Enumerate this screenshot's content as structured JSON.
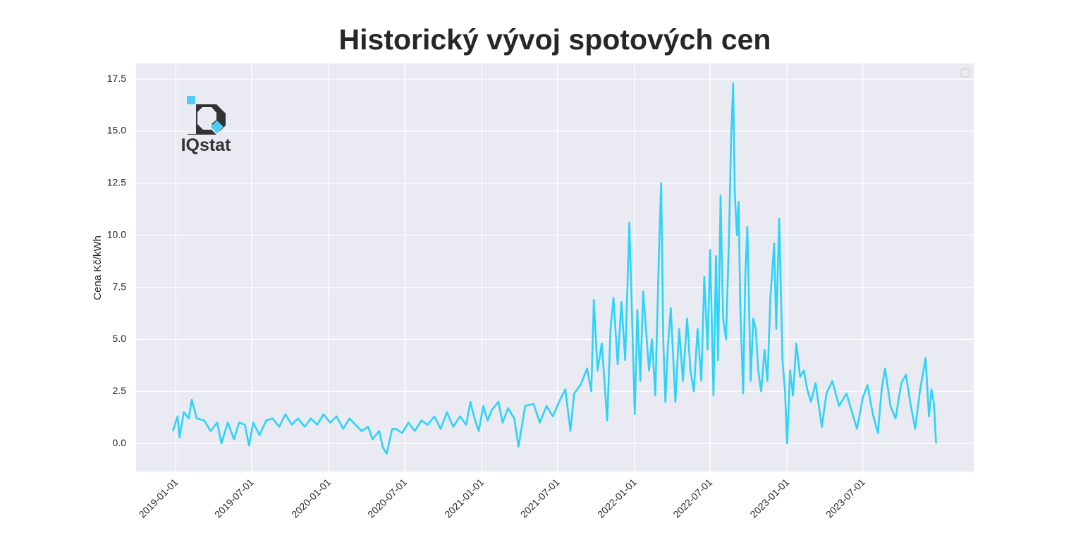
{
  "chart_data": {
    "type": "line",
    "title": "Historický vývoj spotových cen",
    "ylabel": "Cena Kč/kWh",
    "logo_text": "IQstat",
    "grid": true,
    "xlim": [
      "2018-09-28",
      "2024-03-22"
    ],
    "xticks": [
      "2019-01-01",
      "2019-07-01",
      "2020-01-01",
      "2020-07-01",
      "2021-01-01",
      "2021-07-01",
      "2022-01-01",
      "2022-07-01",
      "2023-01-01",
      "2023-07-01"
    ],
    "ylim": [
      -1.35,
      18.25
    ],
    "yticks": [
      {
        "value": 0,
        "label": "0.0"
      },
      2.5,
      {
        "value": 5,
        "label": "5.0"
      },
      7.5,
      {
        "value": 10,
        "label": "10.0"
      },
      12.5,
      {
        "value": 15,
        "label": "15.0"
      },
      17.5
    ],
    "x": [
      "2018-12-25",
      "2019-01-05",
      "2019-01-10",
      "2019-01-20",
      "2019-02-01",
      "2019-02-08",
      "2019-02-20",
      "2019-03-10",
      "2019-03-25",
      "2019-04-10",
      "2019-04-20",
      "2019-05-05",
      "2019-05-20",
      "2019-06-01",
      "2019-06-15",
      "2019-06-25",
      "2019-07-05",
      "2019-07-20",
      "2019-08-05",
      "2019-08-20",
      "2019-09-05",
      "2019-09-20",
      "2019-10-05",
      "2019-10-20",
      "2019-11-05",
      "2019-11-20",
      "2019-12-05",
      "2019-12-20",
      "2020-01-05",
      "2020-01-20",
      "2020-02-05",
      "2020-02-20",
      "2020-03-05",
      "2020-03-20",
      "2020-04-05",
      "2020-04-15",
      "2020-05-01",
      "2020-05-10",
      "2020-05-19",
      "2020-06-01",
      "2020-06-10",
      "2020-06-25",
      "2020-07-10",
      "2020-07-25",
      "2020-08-10",
      "2020-08-25",
      "2020-09-10",
      "2020-09-25",
      "2020-10-10",
      "2020-10-25",
      "2020-11-10",
      "2020-11-25",
      "2020-12-05",
      "2020-12-15",
      "2020-12-25",
      "2021-01-05",
      "2021-01-15",
      "2021-01-25",
      "2021-02-10",
      "2021-02-20",
      "2021-03-05",
      "2021-03-20",
      "2021-03-30",
      "2021-04-15",
      "2021-05-05",
      "2021-05-20",
      "2021-06-05",
      "2021-06-20",
      "2021-07-05",
      "2021-07-20",
      "2021-08-01",
      "2021-08-10",
      "2021-08-25",
      "2021-09-10",
      "2021-09-20",
      "2021-09-26",
      "2021-10-05",
      "2021-10-15",
      "2021-10-28",
      "2021-11-05",
      "2021-11-12",
      "2021-11-22",
      "2021-12-01",
      "2021-12-10",
      "2021-12-20",
      "2022-01-02",
      "2022-01-08",
      "2022-01-15",
      "2022-01-22",
      "2022-02-05",
      "2022-02-12",
      "2022-02-20",
      "2022-03-01",
      "2022-03-06",
      "2022-03-11",
      "2022-03-16",
      "2022-03-22",
      "2022-03-29",
      "2022-04-09",
      "2022-04-18",
      "2022-04-27",
      "2022-05-07",
      "2022-05-15",
      "2022-05-23",
      "2022-06-01",
      "2022-06-10",
      "2022-06-17",
      "2022-06-25",
      "2022-07-01",
      "2022-07-09",
      "2022-07-15",
      "2022-07-20",
      "2022-07-26",
      "2022-08-01",
      "2022-08-08",
      "2022-08-15",
      "2022-08-20",
      "2022-08-25",
      "2022-08-29",
      "2022-09-03",
      "2022-09-07",
      "2022-09-11",
      "2022-09-18",
      "2022-09-23",
      "2022-09-28",
      "2022-10-06",
      "2022-10-12",
      "2022-10-18",
      "2022-10-24",
      "2022-10-31",
      "2022-11-08",
      "2022-11-15",
      "2022-11-22",
      "2022-12-01",
      "2022-12-06",
      "2022-12-13",
      "2022-12-21",
      "2022-12-27",
      "2023-01-01",
      "2023-01-08",
      "2023-01-15",
      "2023-01-23",
      "2023-02-01",
      "2023-02-10",
      "2023-02-18",
      "2023-02-27",
      "2023-03-10",
      "2023-03-25",
      "2023-04-05",
      "2023-04-19",
      "2023-05-05",
      "2023-05-23",
      "2023-06-05",
      "2023-06-17",
      "2023-07-01",
      "2023-07-12",
      "2023-07-25",
      "2023-08-06",
      "2023-08-15",
      "2023-08-23",
      "2023-09-05",
      "2023-09-17",
      "2023-10-01",
      "2023-10-12",
      "2023-10-22",
      "2023-11-03",
      "2023-11-15",
      "2023-11-28",
      "2023-12-06",
      "2023-12-12",
      "2023-12-18",
      "2023-12-23"
    ],
    "series": [
      {
        "color": "#2dd3f9",
        "values": [
          0.6,
          1.3,
          0.3,
          1.5,
          1.2,
          2.1,
          1.2,
          1.1,
          0.6,
          1.0,
          0.0,
          1.0,
          0.2,
          1.0,
          0.9,
          -0.1,
          1.0,
          0.4,
          1.1,
          1.2,
          0.8,
          1.4,
          0.9,
          1.2,
          0.8,
          1.2,
          0.9,
          1.4,
          1.0,
          1.3,
          0.7,
          1.2,
          0.9,
          0.6,
          0.8,
          0.2,
          0.6,
          -0.2,
          -0.5,
          0.7,
          0.7,
          0.5,
          1.0,
          0.6,
          1.1,
          0.9,
          1.3,
          0.7,
          1.5,
          0.8,
          1.3,
          0.9,
          2.0,
          1.2,
          0.6,
          1.8,
          1.1,
          1.6,
          2.0,
          1.0,
          1.7,
          1.2,
          -0.15,
          1.8,
          1.9,
          1.0,
          1.8,
          1.3,
          2.0,
          2.6,
          0.6,
          2.4,
          2.8,
          3.6,
          2.5,
          6.9,
          3.5,
          4.8,
          1.1,
          5.5,
          7.0,
          3.8,
          6.8,
          4.0,
          10.6,
          1.4,
          6.4,
          3.0,
          7.3,
          3.5,
          5.0,
          2.3,
          9.4,
          12.5,
          5.0,
          2.0,
          4.6,
          6.5,
          2.0,
          5.5,
          3.0,
          6.0,
          3.5,
          2.5,
          5.5,
          3.0,
          8.0,
          4.5,
          9.3,
          2.3,
          9.0,
          4.0,
          11.9,
          6.0,
          5.0,
          9.8,
          14.5,
          17.3,
          12.0,
          10.0,
          11.6,
          6.6,
          2.4,
          8.0,
          10.4,
          3.0,
          6.0,
          5.5,
          3.5,
          2.5,
          4.5,
          3.0,
          7.0,
          9.6,
          5.5,
          10.8,
          4.0,
          2.5,
          0.0,
          3.5,
          2.3,
          4.8,
          3.2,
          3.5,
          2.6,
          2.0,
          2.9,
          0.8,
          2.4,
          3.0,
          1.8,
          2.4,
          1.5,
          0.7,
          2.2,
          2.8,
          1.4,
          0.5,
          2.6,
          3.6,
          1.8,
          1.2,
          2.9,
          3.3,
          2.0,
          0.7,
          2.6,
          4.1,
          1.3,
          2.6,
          1.9,
          0.0
        ]
      }
    ]
  }
}
